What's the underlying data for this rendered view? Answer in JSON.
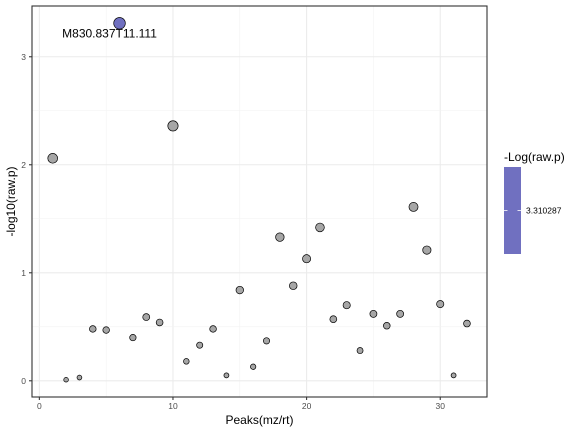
{
  "chart_data": {
    "type": "scatter",
    "title": "",
    "xlabel": "Peaks(mz/rt)",
    "ylabel": "-log10(raw.p)",
    "xlim": [
      -0.55,
      33.5
    ],
    "ylim": [
      -0.15,
      3.47
    ],
    "x_ticks": [
      0,
      10,
      20,
      30
    ],
    "y_ticks": [
      0,
      1,
      2,
      3
    ],
    "grid": true,
    "point_fill_default": "#a6a6a6",
    "point_fill_highlight": "#7070c0",
    "points": [
      {
        "x": 1,
        "y": 2.06
      },
      {
        "x": 2,
        "y": 0.01
      },
      {
        "x": 3,
        "y": 0.03
      },
      {
        "x": 4,
        "y": 0.48
      },
      {
        "x": 5,
        "y": 0.47
      },
      {
        "x": 6,
        "y": 3.31,
        "highlight": true
      },
      {
        "x": 7,
        "y": 0.4
      },
      {
        "x": 8,
        "y": 0.59
      },
      {
        "x": 9,
        "y": 0.54
      },
      {
        "x": 10,
        "y": 2.36
      },
      {
        "x": 11,
        "y": 0.18
      },
      {
        "x": 12,
        "y": 0.33
      },
      {
        "x": 13,
        "y": 0.48
      },
      {
        "x": 14,
        "y": 0.05
      },
      {
        "x": 15,
        "y": 0.84
      },
      {
        "x": 16,
        "y": 0.13
      },
      {
        "x": 17,
        "y": 0.37
      },
      {
        "x": 18,
        "y": 1.33
      },
      {
        "x": 19,
        "y": 0.88
      },
      {
        "x": 20,
        "y": 1.13
      },
      {
        "x": 21,
        "y": 1.42
      },
      {
        "x": 22,
        "y": 0.57
      },
      {
        "x": 23,
        "y": 0.7
      },
      {
        "x": 24,
        "y": 0.28
      },
      {
        "x": 25,
        "y": 0.62
      },
      {
        "x": 26,
        "y": 0.51
      },
      {
        "x": 27,
        "y": 0.62
      },
      {
        "x": 28,
        "y": 1.61
      },
      {
        "x": 29,
        "y": 1.21
      },
      {
        "x": 30,
        "y": 0.71
      },
      {
        "x": 31,
        "y": 0.05
      },
      {
        "x": 32,
        "y": 0.53
      }
    ],
    "annotations": [
      {
        "text": "M830.837T11.111",
        "x": 6,
        "y": 3.31
      }
    ],
    "legend": {
      "title": "-Log(raw.p)",
      "placement": "right",
      "color": "#7070c0",
      "labels": [
        "3.310287"
      ]
    }
  }
}
